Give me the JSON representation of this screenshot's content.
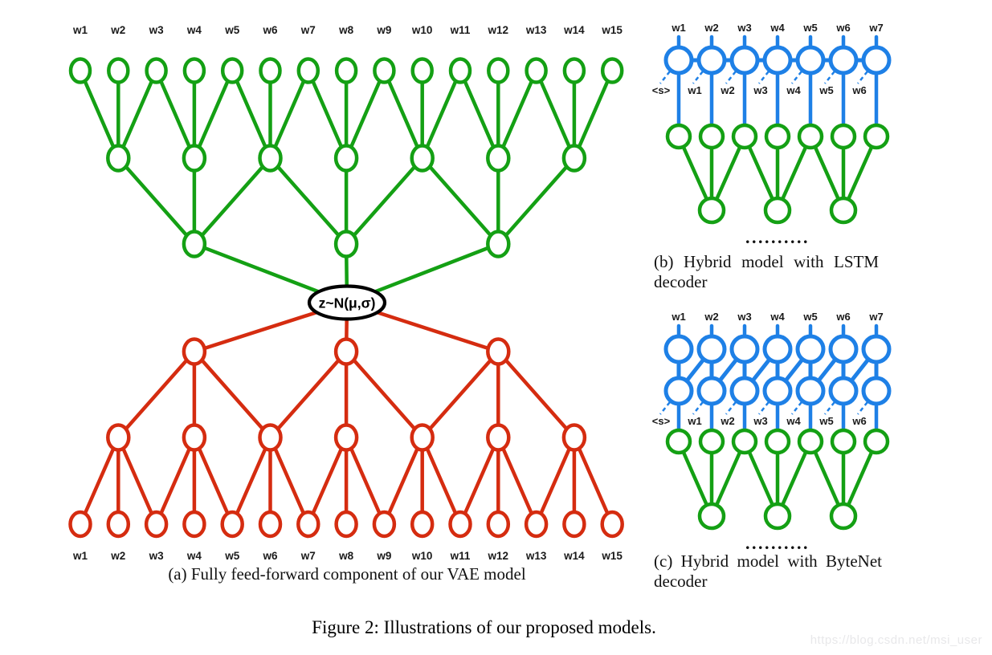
{
  "figure": {
    "caption": "Figure 2: Illustrations of our proposed models.",
    "watermark": "https://blog.csdn.net/msi_user"
  },
  "colors": {
    "encoder_green": "#14A014",
    "decoder_red": "#D52C10",
    "rnn_blue": "#1E80E6",
    "latent_black": "#000000",
    "label_text": "#1A1A1A",
    "watermark_gray": "#E8E8EA"
  },
  "panel_a": {
    "caption": "(a) Fully feed-forward component of our VAE model",
    "input_labels": [
      "w1",
      "w2",
      "w3",
      "w4",
      "w5",
      "w6",
      "w7",
      "w8",
      "w9",
      "w10",
      "w11",
      "w12",
      "w13",
      "w14",
      "w15"
    ],
    "output_labels": [
      "w1",
      "w2",
      "w3",
      "w4",
      "w5",
      "w6",
      "w7",
      "w8",
      "w9",
      "w10",
      "w11",
      "w12",
      "w13",
      "w14",
      "w15"
    ],
    "latent_label": "z~N(μ,σ)",
    "encoder_layer_sizes": [
      15,
      7,
      3
    ],
    "decoder_layer_sizes": [
      3,
      7,
      15
    ]
  },
  "panel_b": {
    "caption": "(b) Hybrid model with LSTM decoder",
    "word_labels": [
      "w1",
      "w2",
      "w3",
      "w4",
      "w5",
      "w6",
      "w7"
    ],
    "input_labels": [
      "<s>",
      "w1",
      "w2",
      "w3",
      "w4",
      "w5",
      "w6"
    ],
    "ellipsis": "..........",
    "encoder_layer_sizes": [
      7,
      3
    ]
  },
  "panel_c": {
    "caption": "(c) Hybrid model with ByteNet decoder",
    "word_labels": [
      "w1",
      "w2",
      "w3",
      "w4",
      "w5",
      "w6",
      "w7"
    ],
    "input_labels": [
      "<s>",
      "w1",
      "w2",
      "w3",
      "w4",
      "w5",
      "w6"
    ],
    "ellipsis": "..........",
    "encoder_layer_sizes": [
      7,
      3
    ]
  }
}
